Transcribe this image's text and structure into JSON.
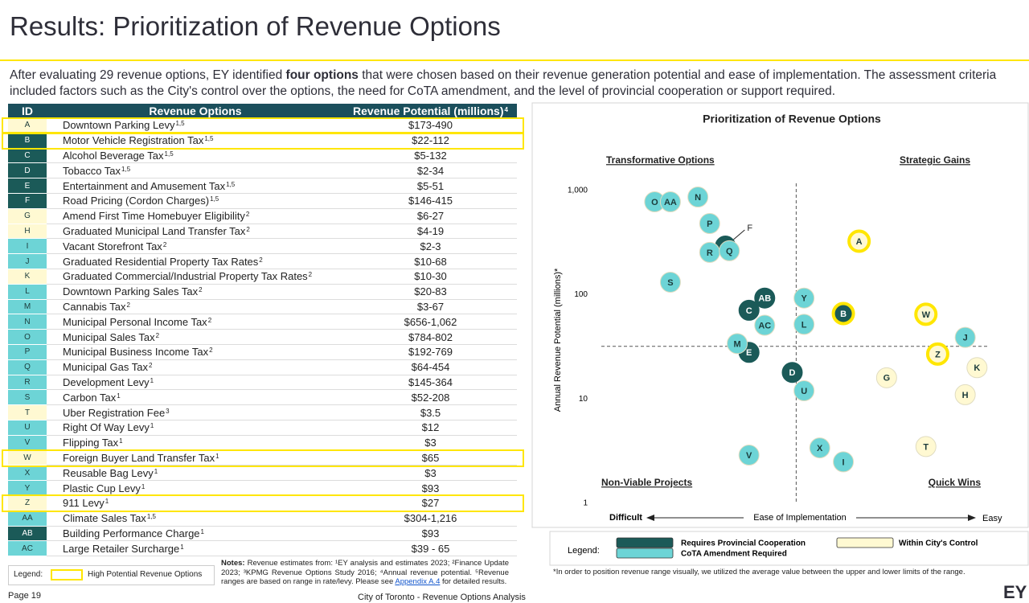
{
  "header": {
    "title": "Results: Prioritization of Revenue Options"
  },
  "intro": {
    "before": "After evaluating 29 revenue options, EY identified ",
    "bold": "four options",
    "after": " that were chosen based on their revenue generation potential and ease of implementation. The assessment criteria included factors such as the City's control over the options, the need for CoTA amendment, and the level of provincial cooperation or support required."
  },
  "table": {
    "header_color": "#1b4f5c",
    "highlight_color": "#ffe600",
    "columns": [
      {
        "label": "ID"
      },
      {
        "label": "Revenue Options"
      },
      {
        "label": "Revenue Potential (millions)",
        "sup": "4"
      }
    ],
    "rows": [
      {
        "id": "A",
        "option": "Downtown Parking Levy",
        "sup": "1,5",
        "revenue": "$173-490",
        "group": 2,
        "highlight": true
      },
      {
        "id": "B",
        "option": "Motor Vehicle Registration Tax",
        "sup": "1,5",
        "revenue": "$22-112",
        "group": 0,
        "highlight": true
      },
      {
        "id": "C",
        "option": "Alcohol Beverage Tax",
        "sup": "1,5",
        "revenue": "$5-132",
        "group": 0,
        "highlight": false
      },
      {
        "id": "D",
        "option": "Tobacco Tax",
        "sup": "1,5",
        "revenue": "$2-34",
        "group": 0,
        "highlight": false
      },
      {
        "id": "E",
        "option": "Entertainment and Amusement Tax",
        "sup": "1,5",
        "revenue": "$5-51",
        "group": 0,
        "highlight": false
      },
      {
        "id": "F",
        "option": "Road Pricing (Cordon Charges)",
        "sup": "1,5",
        "revenue": "$146-415",
        "group": 0,
        "highlight": false
      },
      {
        "id": "G",
        "option": "Amend First Time Homebuyer Eligibility",
        "sup": "2",
        "revenue": "$6-27",
        "group": 2,
        "highlight": false
      },
      {
        "id": "H",
        "option": "Graduated Municipal Land Transfer Tax",
        "sup": "2",
        "revenue": "$4-19",
        "group": 2,
        "highlight": false
      },
      {
        "id": "I",
        "option": "Vacant Storefront Tax",
        "sup": "2",
        "revenue": "$2-3",
        "group": 1,
        "highlight": false
      },
      {
        "id": "J",
        "option": "Graduated Residential Property Tax Rates",
        "sup": "2",
        "revenue": "$10-68",
        "group": 1,
        "highlight": false
      },
      {
        "id": "K",
        "option": "Graduated Commercial/Industrial Property Tax Rates",
        "sup": "2",
        "revenue": "$10-30",
        "group": 2,
        "highlight": false
      },
      {
        "id": "L",
        "option": "Downtown Parking Sales Tax",
        "sup": "2",
        "revenue": "$20-83",
        "group": 1,
        "highlight": false
      },
      {
        "id": "M",
        "option": "Cannabis Tax",
        "sup": "2",
        "revenue": "$3-67",
        "group": 1,
        "highlight": false
      },
      {
        "id": "N",
        "option": "Municipal Personal Income Tax",
        "sup": "2",
        "revenue": "$656-1,062",
        "group": 1,
        "highlight": false
      },
      {
        "id": "O",
        "option": "Municipal Sales Tax",
        "sup": "2",
        "revenue": "$784-802",
        "group": 1,
        "highlight": false
      },
      {
        "id": "P",
        "option": "Municipal Business Income Tax",
        "sup": "2",
        "revenue": "$192-769",
        "group": 1,
        "highlight": false
      },
      {
        "id": "Q",
        "option": "Municipal Gas Tax",
        "sup": "2",
        "revenue": "$64-454",
        "group": 1,
        "highlight": false
      },
      {
        "id": "R",
        "option": "Development Levy",
        "sup": "1",
        "revenue": "$145-364",
        "group": 1,
        "highlight": false
      },
      {
        "id": "S",
        "option": "Carbon Tax",
        "sup": "1",
        "revenue": "$52-208",
        "group": 1,
        "highlight": false
      },
      {
        "id": "T",
        "option": "Uber Registration Fee",
        "sup": "3",
        "revenue": "$3.5",
        "group": 2,
        "highlight": false
      },
      {
        "id": "U",
        "option": "Right Of Way Levy",
        "sup": "1",
        "revenue": "$12",
        "group": 1,
        "highlight": false
      },
      {
        "id": "V",
        "option": "Flipping Tax",
        "sup": "1",
        "revenue": "$3",
        "group": 1,
        "highlight": false
      },
      {
        "id": "W",
        "option": "Foreign Buyer Land Transfer Tax",
        "sup": "1",
        "revenue": "$65",
        "group": 2,
        "highlight": true
      },
      {
        "id": "X",
        "option": "Reusable Bag Levy",
        "sup": "1",
        "revenue": "$3",
        "group": 1,
        "highlight": false
      },
      {
        "id": "Y",
        "option": "Plastic Cup Levy",
        "sup": "1",
        "revenue": "$93",
        "group": 1,
        "highlight": false
      },
      {
        "id": "Z",
        "option": "911 Levy",
        "sup": "1",
        "revenue": "$27",
        "group": 2,
        "highlight": true
      },
      {
        "id": "AA",
        "option": "Climate Sales Tax",
        "sup": "1,5",
        "revenue": "$304-1,216",
        "group": 1,
        "highlight": false
      },
      {
        "id": "AB",
        "option": "Building Performance Charge",
        "sup": "1",
        "revenue": "$93",
        "group": 0,
        "highlight": false
      },
      {
        "id": "AC",
        "option": "Large Retailer Surcharge",
        "sup": "1",
        "revenue": "$39 - 65",
        "group": 1,
        "highlight": false
      }
    ]
  },
  "table_legend": {
    "label": "Legend:",
    "item": "High Potential Revenue Options"
  },
  "notes": {
    "label": "Notes:",
    "text": " Revenue estimates from: ¹EY analysis and estimates 2023; ²Finance Update 2023; ³KPMG Revenue Options Study 2016; ⁴Annual revenue potential. ⁵Revenue ranges are based on range in rate/levy. Please see ",
    "link": "Appendix A.4",
    "after": " for detailed results."
  },
  "footer": {
    "page": "Page 19",
    "center": "City of Toronto - Revenue Options Analysis",
    "logo": "EY"
  },
  "chart_data": {
    "type": "scatter",
    "title": "Prioritization of Revenue Options",
    "y_label": "Annual Revenue Potential (millions)*",
    "x_label": "Ease of Implementation",
    "x_low": "Difficult",
    "x_high": "Easy",
    "quadrants": {
      "top_left": "Transformative Options",
      "top_right": "Strategic Gains",
      "bottom_left": "Non-Viable Projects",
      "bottom_right": "Quick Wins"
    },
    "quadrant_x": 5.1,
    "quadrant_y": 32,
    "xlim": [
      0,
      10
    ],
    "ylim": [
      1,
      1350
    ],
    "log_y": true,
    "yticks": [
      {
        "value": 1000,
        "label": "1,000"
      },
      100,
      10,
      1
    ],
    "legend_label": "Legend:",
    "highlight_color": "#ffe600",
    "series": [
      {
        "name": "Requires Provincial Cooperation",
        "color": "#1b5a58",
        "labels": [
          "F",
          "AB",
          "C",
          "E",
          "D",
          "B"
        ],
        "x": [
          3.3,
          4.3,
          3.9,
          3.9,
          5.0,
          6.3
        ],
        "values": [
          293,
          93,
          71,
          28,
          18,
          66
        ],
        "highlighted": [
          false,
          false,
          false,
          false,
          false,
          true
        ]
      },
      {
        "name": "CoTA Amendment Required",
        "color": "#6dd4d6",
        "labels": [
          "O",
          "AA",
          "N",
          "P",
          "R",
          "Q",
          "S",
          "AC",
          "Y",
          "L",
          "J",
          "M",
          "U",
          "X",
          "V",
          "I"
        ],
        "x": [
          1.5,
          1.9,
          2.6,
          2.9,
          2.9,
          3.4,
          1.9,
          4.3,
          5.3,
          5.3,
          9.4,
          3.6,
          5.3,
          5.7,
          3.9,
          6.3
        ],
        "values": [
          778,
          778,
          866,
          482,
          255,
          264,
          132,
          51,
          93,
          52,
          39,
          34,
          12,
          3.4,
          2.9,
          2.5
        ],
        "highlighted": [
          false,
          false,
          false,
          false,
          false,
          false,
          false,
          false,
          false,
          false,
          false,
          false,
          false,
          false,
          false,
          false
        ]
      },
      {
        "name": "Within City's Control",
        "color": "#fff9d2",
        "labels": [
          "A",
          "W",
          "Z",
          "G",
          "K",
          "H",
          "T"
        ],
        "x": [
          6.7,
          8.4,
          8.7,
          7.4,
          9.7,
          9.4,
          8.4
        ],
        "values": [
          326,
          65,
          27,
          16,
          20,
          11,
          3.5
        ],
        "highlighted": [
          true,
          true,
          true,
          false,
          false,
          false,
          false
        ]
      }
    ],
    "footnote": "*In order to position revenue range visually, we utilized the average value between the upper and lower limits of the range."
  }
}
